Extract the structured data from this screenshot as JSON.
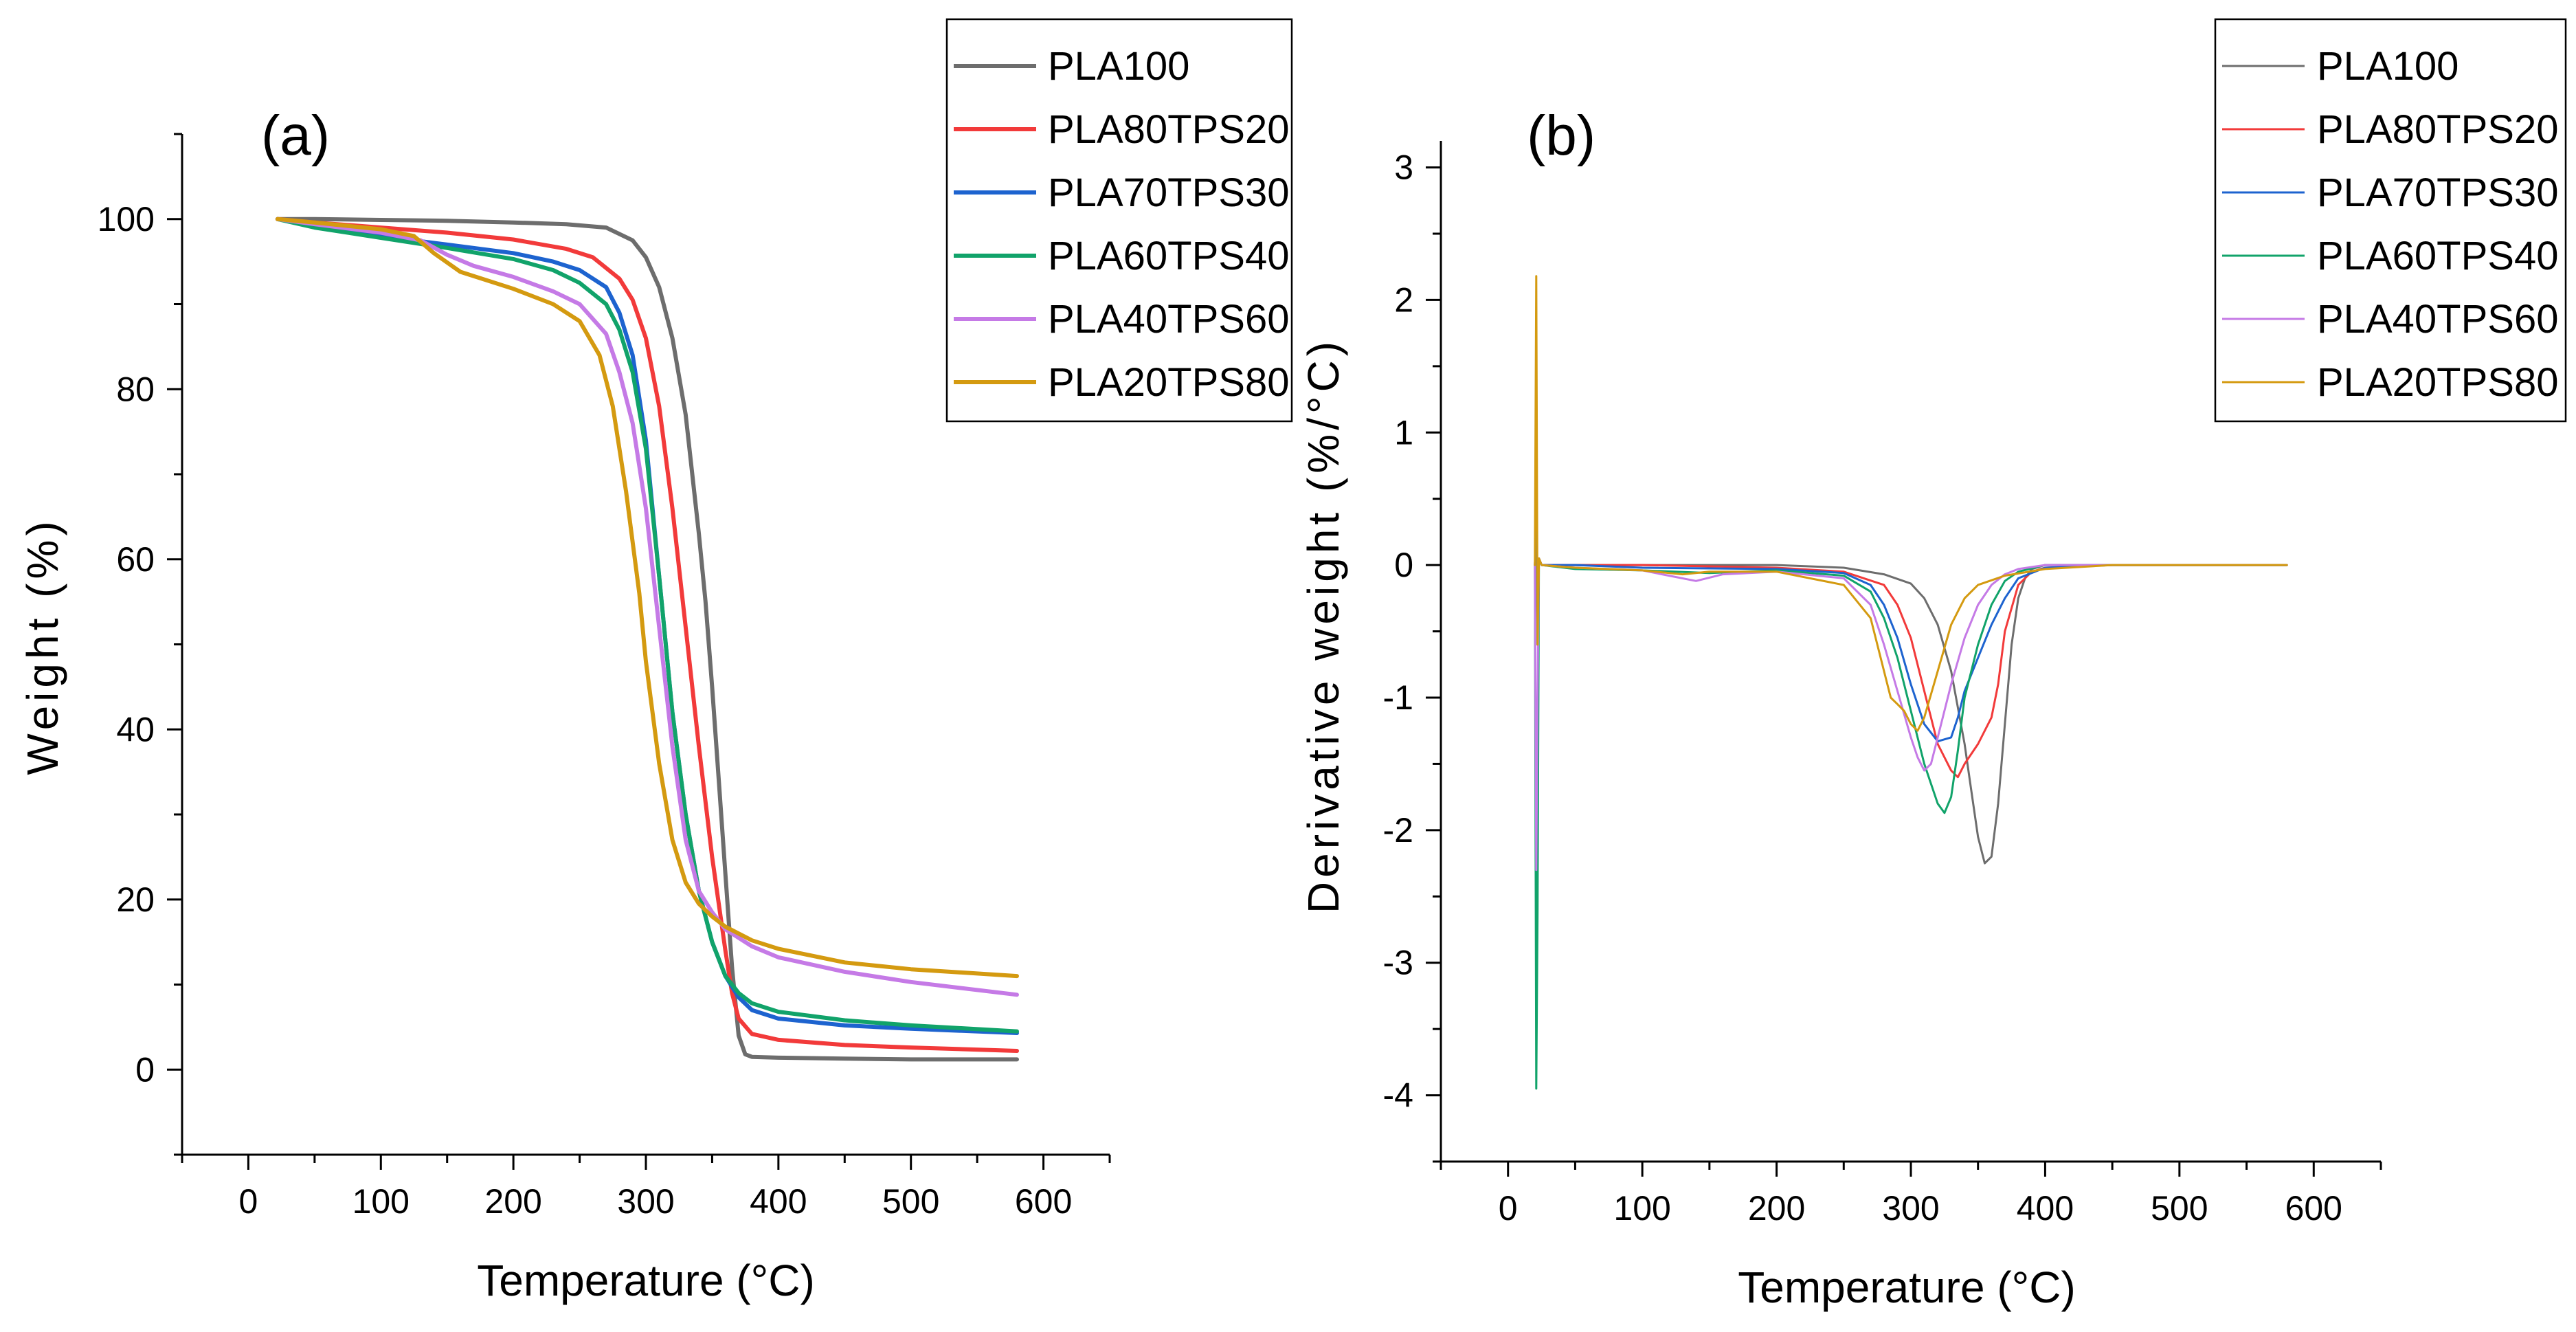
{
  "colors": {
    "PLA100": "#6d6d6d",
    "PLA80TPS20": "#f23a3a",
    "PLA70TPS30": "#1d63cf",
    "PLA60TPS40": "#11a36a",
    "PLA40TPS60": "#c57ae6",
    "PLA20TPS80": "#d49a10"
  },
  "chart_data": [
    {
      "type": "line",
      "panel_label": "(a)",
      "title": "",
      "xlabel": "Temperature (°C)",
      "ylabel": "Weight (%)",
      "xlim": [
        -50,
        650
      ],
      "ylim": [
        -10,
        110
      ],
      "xticks": [
        0,
        100,
        200,
        300,
        400,
        500,
        600
      ],
      "xtick_labels": [
        "0",
        "100",
        "200",
        "300",
        "400",
        "500",
        "600"
      ],
      "yticks": [
        0,
        20,
        40,
        60,
        80,
        100
      ],
      "ytick_labels": [
        "0",
        "20",
        "40",
        "60",
        "80",
        "100"
      ],
      "grid": false,
      "legend_position": "top-right",
      "series": [
        {
          "name": "PLA100",
          "x": [
            22,
            50,
            100,
            150,
            200,
            240,
            270,
            290,
            300,
            310,
            320,
            330,
            340,
            345,
            350,
            355,
            360,
            365,
            370,
            375,
            380,
            400,
            450,
            500,
            580
          ],
          "y": [
            100,
            100,
            99.9,
            99.8,
            99.6,
            99.4,
            99.0,
            97.5,
            95.5,
            92,
            86,
            77,
            63,
            55,
            45,
            34,
            23,
            12,
            4,
            1.8,
            1.5,
            1.4,
            1.3,
            1.2,
            1.2
          ]
        },
        {
          "name": "PLA80TPS20",
          "x": [
            22,
            50,
            100,
            150,
            200,
            240,
            260,
            280,
            290,
            300,
            310,
            320,
            330,
            340,
            350,
            360,
            365,
            370,
            380,
            400,
            450,
            500,
            580
          ],
          "y": [
            100,
            99.6,
            99,
            98.4,
            97.6,
            96.5,
            95.5,
            93,
            90.5,
            86,
            78,
            66,
            52,
            38,
            25,
            14,
            9,
            6,
            4.2,
            3.5,
            2.9,
            2.6,
            2.2
          ]
        },
        {
          "name": "PLA70TPS30",
          "x": [
            22,
            50,
            100,
            150,
            200,
            230,
            250,
            270,
            280,
            290,
            300,
            310,
            320,
            330,
            340,
            350,
            360,
            370,
            380,
            400,
            450,
            500,
            580
          ],
          "y": [
            100,
            99.2,
            98,
            97.0,
            96.0,
            95.0,
            94.0,
            92,
            89,
            84,
            74,
            58,
            42,
            30,
            21,
            15,
            11,
            8.5,
            7,
            6,
            5.2,
            4.8,
            4.3
          ]
        },
        {
          "name": "PLA60TPS40",
          "x": [
            22,
            50,
            100,
            150,
            200,
            230,
            250,
            270,
            280,
            290,
            300,
            310,
            320,
            330,
            340,
            350,
            360,
            370,
            380,
            400,
            450,
            500,
            580
          ],
          "y": [
            100,
            99,
            97.8,
            96.6,
            95.3,
            94.0,
            92.5,
            90,
            87,
            82,
            73,
            58,
            42,
            30,
            21,
            15,
            11,
            9,
            7.8,
            6.8,
            5.8,
            5.2,
            4.5
          ]
        },
        {
          "name": "PLA40TPS60",
          "x": [
            22,
            50,
            100,
            130,
            150,
            170,
            200,
            230,
            250,
            270,
            280,
            290,
            300,
            310,
            320,
            330,
            340,
            350,
            360,
            380,
            400,
            450,
            500,
            580
          ],
          "y": [
            100,
            99.4,
            98.4,
            97.5,
            95.8,
            94.5,
            93.2,
            91.5,
            90,
            86.5,
            82,
            76,
            66,
            52,
            38,
            27,
            21,
            18.5,
            16.5,
            14.5,
            13.2,
            11.5,
            10.3,
            8.8
          ]
        },
        {
          "name": "PLA20TPS80",
          "x": [
            22,
            50,
            100,
            125,
            140,
            160,
            200,
            230,
            250,
            265,
            275,
            285,
            295,
            300,
            310,
            320,
            330,
            340,
            350,
            360,
            380,
            400,
            450,
            500,
            580
          ],
          "y": [
            100,
            99.6,
            98.8,
            98,
            96,
            93.8,
            91.8,
            90,
            88,
            84,
            78,
            68,
            56,
            48,
            36,
            27,
            22,
            19.5,
            18,
            16.8,
            15.2,
            14.2,
            12.6,
            11.8,
            11
          ]
        }
      ]
    },
    {
      "type": "line",
      "panel_label": "(b)",
      "title": "",
      "xlabel": "Temperature (°C)",
      "ylabel": "Derivative weight (%/°C)",
      "xlim": [
        -50,
        650
      ],
      "ylim": [
        -4.5,
        3.2
      ],
      "xticks": [
        0,
        100,
        200,
        300,
        400,
        500,
        600
      ],
      "xtick_labels": [
        "0",
        "100",
        "200",
        "300",
        "400",
        "500",
        "600"
      ],
      "yticks": [
        -4,
        -3,
        -2,
        -1,
        0,
        1,
        2,
        3
      ],
      "ytick_labels": [
        "-4",
        "-3",
        "-2",
        "-1",
        "0",
        "1",
        "2",
        "3"
      ],
      "grid": false,
      "legend_position": "top-right",
      "series": [
        {
          "name": "PLA100",
          "x": [
            20,
            21,
            22,
            23,
            25,
            50,
            100,
            200,
            250,
            280,
            300,
            310,
            320,
            330,
            340,
            345,
            350,
            355,
            360,
            365,
            370,
            375,
            380,
            385,
            390,
            400,
            450,
            500,
            580
          ],
          "y": [
            0,
            0.3,
            -0.4,
            0.05,
            0,
            0,
            0,
            0,
            -0.02,
            -0.07,
            -0.14,
            -0.25,
            -0.45,
            -0.8,
            -1.35,
            -1.7,
            -2.05,
            -2.25,
            -2.2,
            -1.8,
            -1.2,
            -0.6,
            -0.25,
            -0.1,
            -0.03,
            0,
            0,
            0,
            0
          ]
        },
        {
          "name": "PLA80TPS20",
          "x": [
            20,
            21,
            22,
            23,
            25,
            50,
            100,
            200,
            250,
            280,
            290,
            300,
            310,
            320,
            330,
            335,
            340,
            350,
            360,
            365,
            370,
            380,
            390,
            400,
            450,
            500,
            580
          ],
          "y": [
            0,
            0.3,
            -0.5,
            0.05,
            0,
            0,
            0,
            -0.02,
            -0.05,
            -0.15,
            -0.3,
            -0.55,
            -0.95,
            -1.35,
            -1.55,
            -1.6,
            -1.5,
            -1.35,
            -1.15,
            -0.9,
            -0.5,
            -0.15,
            -0.05,
            -0.02,
            0,
            0,
            0
          ]
        },
        {
          "name": "PLA70TPS30",
          "x": [
            20,
            21,
            22,
            23,
            25,
            50,
            100,
            200,
            250,
            270,
            280,
            290,
            300,
            310,
            320,
            330,
            335,
            340,
            350,
            360,
            370,
            380,
            400,
            450,
            500,
            580
          ],
          "y": [
            0,
            0.25,
            -0.6,
            0.05,
            0,
            0,
            -0.02,
            -0.03,
            -0.06,
            -0.15,
            -0.3,
            -0.55,
            -0.9,
            -1.2,
            -1.33,
            -1.3,
            -1.15,
            -0.95,
            -0.7,
            -0.45,
            -0.25,
            -0.1,
            -0.02,
            0,
            0,
            0
          ]
        },
        {
          "name": "PLA60TPS40",
          "x": [
            20,
            21,
            22,
            23,
            25,
            50,
            100,
            150,
            200,
            250,
            270,
            280,
            290,
            300,
            310,
            320,
            325,
            330,
            335,
            340,
            350,
            360,
            370,
            380,
            400,
            450,
            500,
            580
          ],
          "y": [
            0,
            -3.95,
            -2.6,
            0.05,
            0,
            -0.03,
            -0.04,
            -0.06,
            -0.04,
            -0.08,
            -0.2,
            -0.4,
            -0.7,
            -1.1,
            -1.5,
            -1.8,
            -1.87,
            -1.75,
            -1.4,
            -1.0,
            -0.6,
            -0.3,
            -0.12,
            -0.05,
            0,
            0,
            0,
            0
          ]
        },
        {
          "name": "PLA40TPS60",
          "x": [
            20,
            21,
            22,
            23,
            25,
            50,
            100,
            120,
            140,
            160,
            200,
            250,
            270,
            280,
            290,
            300,
            305,
            310,
            315,
            320,
            330,
            340,
            350,
            360,
            370,
            380,
            400,
            450,
            500,
            580
          ],
          "y": [
            0,
            -2.3,
            -1.0,
            0.05,
            0,
            -0.02,
            -0.04,
            -0.08,
            -0.12,
            -0.07,
            -0.05,
            -0.1,
            -0.3,
            -0.6,
            -0.95,
            -1.3,
            -1.45,
            -1.55,
            -1.5,
            -1.3,
            -0.9,
            -0.55,
            -0.3,
            -0.15,
            -0.07,
            -0.03,
            0,
            0,
            0,
            0
          ]
        },
        {
          "name": "PLA20TPS80",
          "x": [
            20,
            21,
            22,
            23,
            25,
            50,
            100,
            130,
            150,
            200,
            250,
            270,
            280,
            285,
            290,
            295,
            300,
            305,
            310,
            320,
            330,
            340,
            350,
            370,
            400,
            450,
            500,
            580
          ],
          "y": [
            0,
            2.18,
            -0.6,
            0.05,
            0,
            -0.02,
            -0.04,
            -0.07,
            -0.05,
            -0.05,
            -0.15,
            -0.4,
            -0.8,
            -1.0,
            -1.05,
            -1.1,
            -1.2,
            -1.25,
            -1.15,
            -0.8,
            -0.45,
            -0.25,
            -0.15,
            -0.08,
            -0.03,
            0,
            0,
            0
          ]
        }
      ]
    }
  ]
}
